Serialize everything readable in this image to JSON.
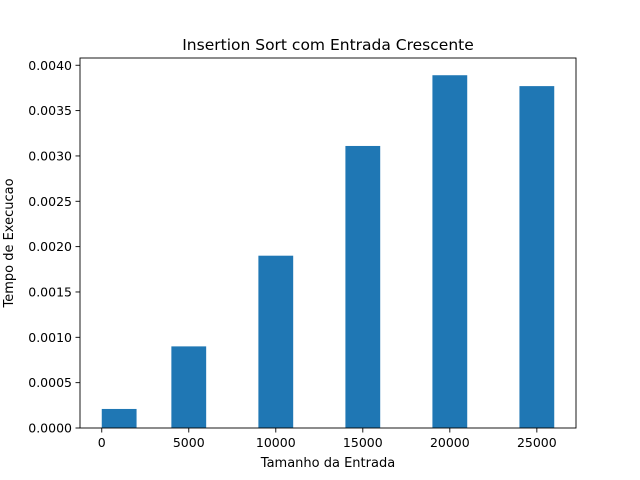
{
  "chart_data": {
    "type": "bar",
    "title": "Insertion Sort com Entrada Crescente",
    "xlabel": "Tamanho da Entrada",
    "ylabel": "Tempo de Execucao",
    "x": [
      1000,
      5000,
      10000,
      15000,
      20000,
      25000
    ],
    "values": [
      0.00021,
      0.0009,
      0.0019,
      0.00311,
      0.00389,
      0.00377
    ],
    "bar_width": 2000,
    "xlim": [
      -1250,
      27250
    ],
    "ylim": [
      0,
      0.00408
    ],
    "xticks": [
      0,
      5000,
      10000,
      15000,
      20000,
      25000
    ],
    "xtick_labels": [
      "0",
      "5000",
      "10000",
      "15000",
      "20000",
      "25000"
    ],
    "yticks": [
      0,
      0.0005,
      0.001,
      0.0015,
      0.002,
      0.0025,
      0.003,
      0.0035,
      0.004
    ],
    "ytick_labels": [
      "0.0000",
      "0.0005",
      "0.0010",
      "0.0015",
      "0.0020",
      "0.0025",
      "0.0030",
      "0.0035",
      "0.0040"
    ],
    "grid": false,
    "bar_color": "#1f77b4"
  }
}
